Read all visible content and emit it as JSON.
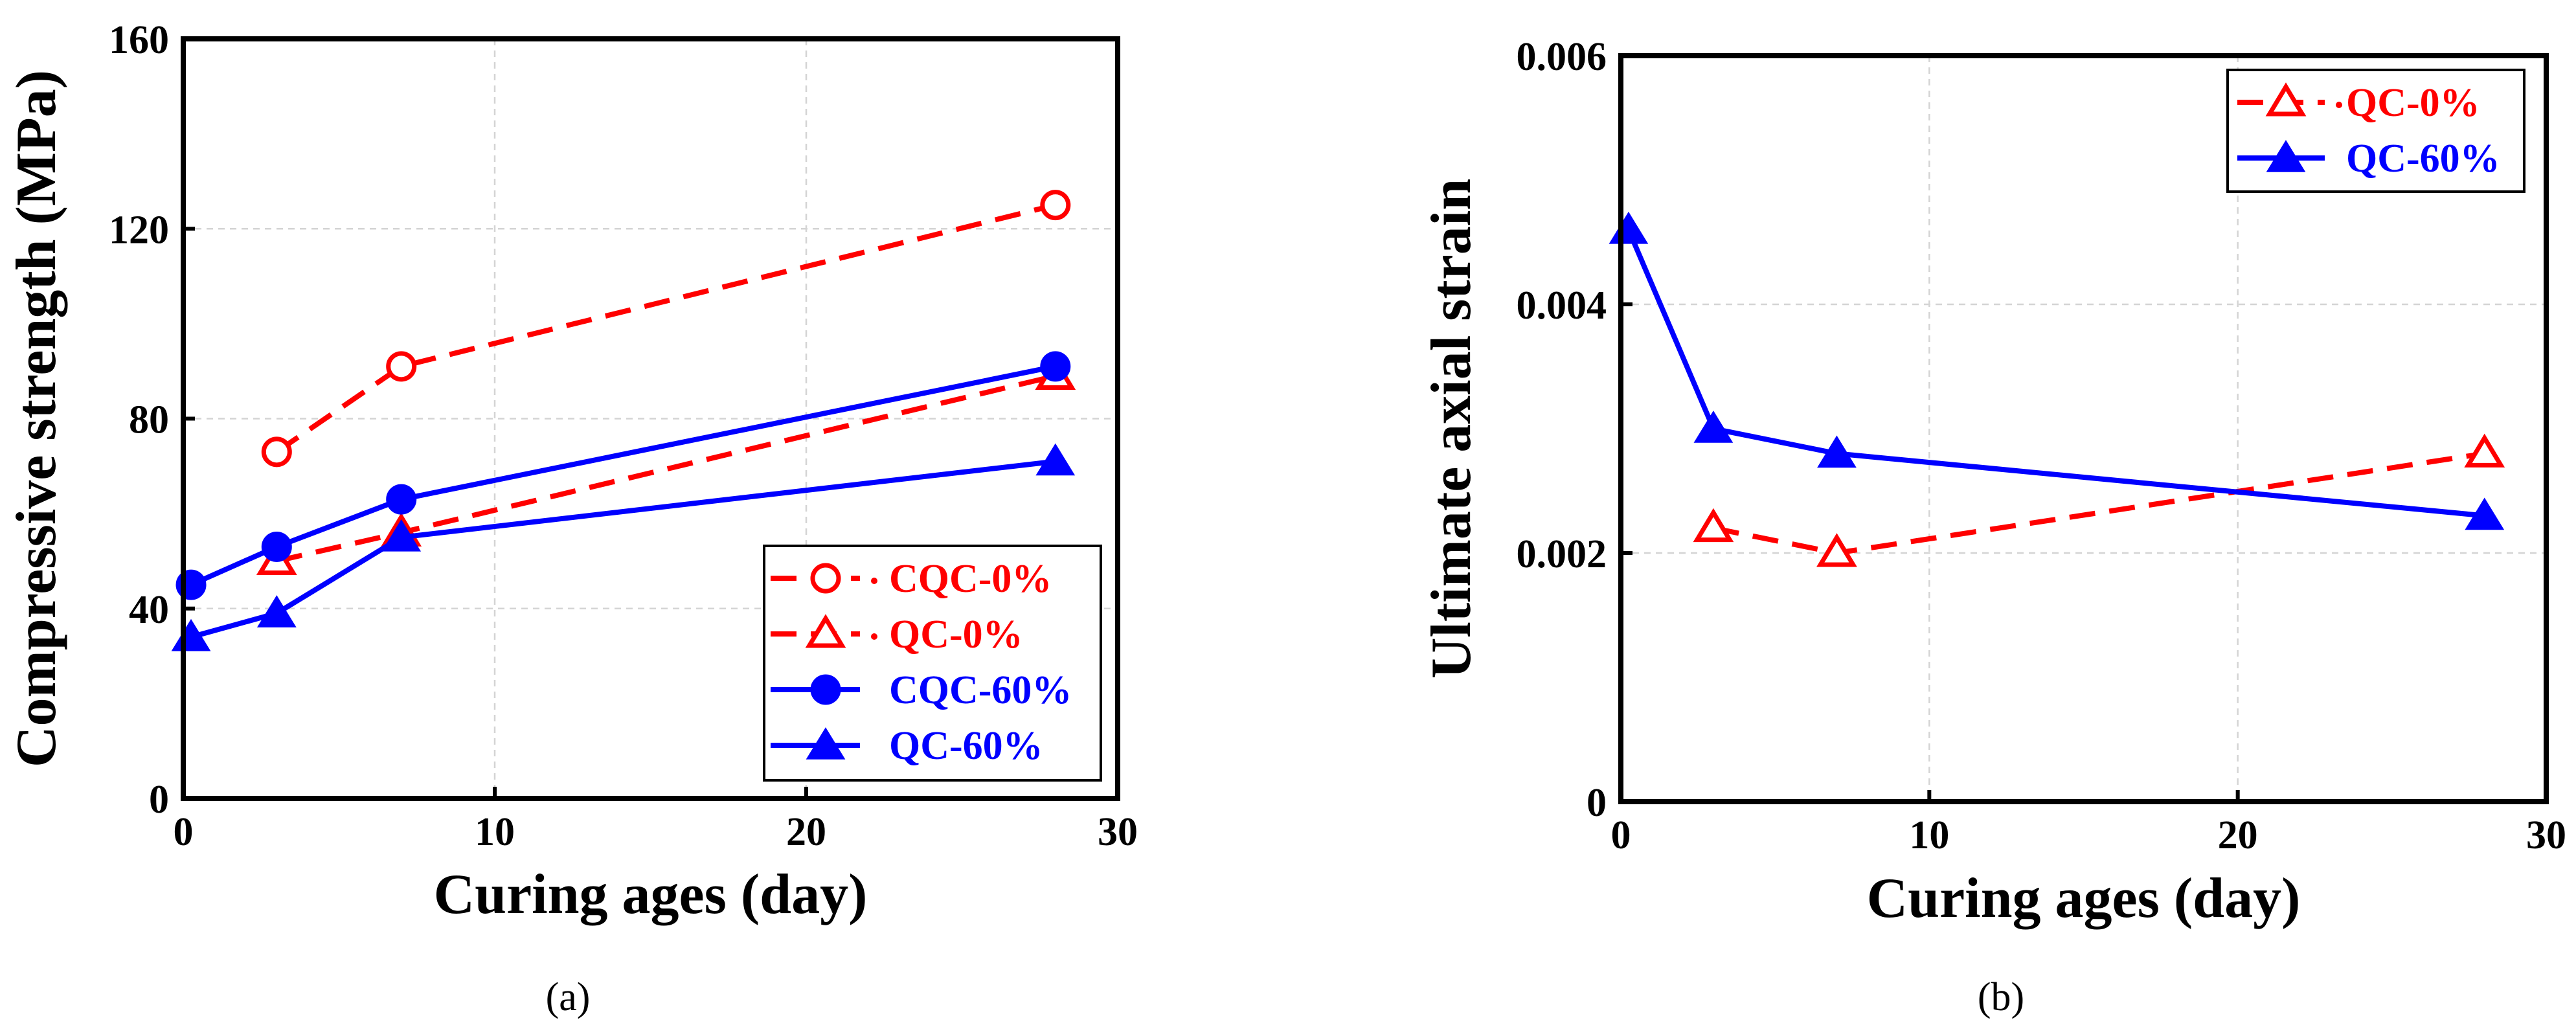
{
  "figure": {
    "panels": [
      "a",
      "b"
    ]
  },
  "chart_data": [
    {
      "type": "line",
      "panel_label": "(a)",
      "title": "",
      "xlabel": "Curing ages (day)",
      "ylabel": "Compressive strength (MPa)",
      "xlim": [
        0,
        30
      ],
      "ylim": [
        0,
        160
      ],
      "xticks": [
        0,
        10,
        20,
        30
      ],
      "yticks": [
        0,
        40,
        80,
        120,
        160
      ],
      "xtick_labels": [
        "0",
        "10",
        "20",
        "30"
      ],
      "ytick_labels": [
        "0",
        "40",
        "80",
        "120",
        "160"
      ],
      "grid": true,
      "legend_position": "bottom-right",
      "series": [
        {
          "name": "CQC-0%",
          "label": "CQC-0%",
          "color": "#ff0000",
          "line": "dashed",
          "marker": "circle-open",
          "x": [
            3,
            7,
            28
          ],
          "y": [
            73,
            91,
            125
          ]
        },
        {
          "name": "QC-0%",
          "label": "QC-0%",
          "color": "#ff0000",
          "line": "dashed",
          "marker": "triangle-open",
          "x": [
            3,
            7,
            28
          ],
          "y": [
            50,
            56,
            89
          ]
        },
        {
          "name": "CQC-60%",
          "label": "CQC-60%",
          "color": "#0000ff",
          "line": "solid",
          "marker": "circle-filled",
          "x": [
            0.25,
            3,
            7,
            28
          ],
          "y": [
            45,
            53,
            63,
            91
          ]
        },
        {
          "name": "QC-60%",
          "label": "QC-60%",
          "color": "#0000ff",
          "line": "solid",
          "marker": "triangle-filled",
          "x": [
            0.25,
            3,
            7,
            28
          ],
          "y": [
            34,
            39,
            55,
            71
          ]
        }
      ]
    },
    {
      "type": "line",
      "panel_label": "(b)",
      "title": "",
      "xlabel": "Curing ages (day)",
      "ylabel": "Ultimate axial strain",
      "xlim": [
        0,
        30
      ],
      "ylim": [
        0,
        0.006
      ],
      "xticks": [
        0,
        10,
        20,
        30
      ],
      "yticks": [
        0,
        0.002,
        0.004,
        0.006
      ],
      "xtick_labels": [
        "0",
        "10",
        "20",
        "30"
      ],
      "ytick_labels": [
        "0",
        "0.002",
        "0.004",
        "0.006"
      ],
      "grid": true,
      "legend_position": "top-right",
      "series": [
        {
          "name": "QC-0%",
          "label": "QC-0%",
          "color": "#ff0000",
          "line": "dashed",
          "marker": "triangle-open",
          "x": [
            3,
            7,
            28
          ],
          "y": [
            0.0022,
            0.002,
            0.0028
          ]
        },
        {
          "name": "QC-60%",
          "label": "QC-60%",
          "color": "#0000ff",
          "line": "solid",
          "marker": "triangle-filled",
          "x": [
            0.25,
            3,
            7,
            28
          ],
          "y": [
            0.0046,
            0.003,
            0.0028,
            0.0023
          ]
        }
      ]
    }
  ]
}
